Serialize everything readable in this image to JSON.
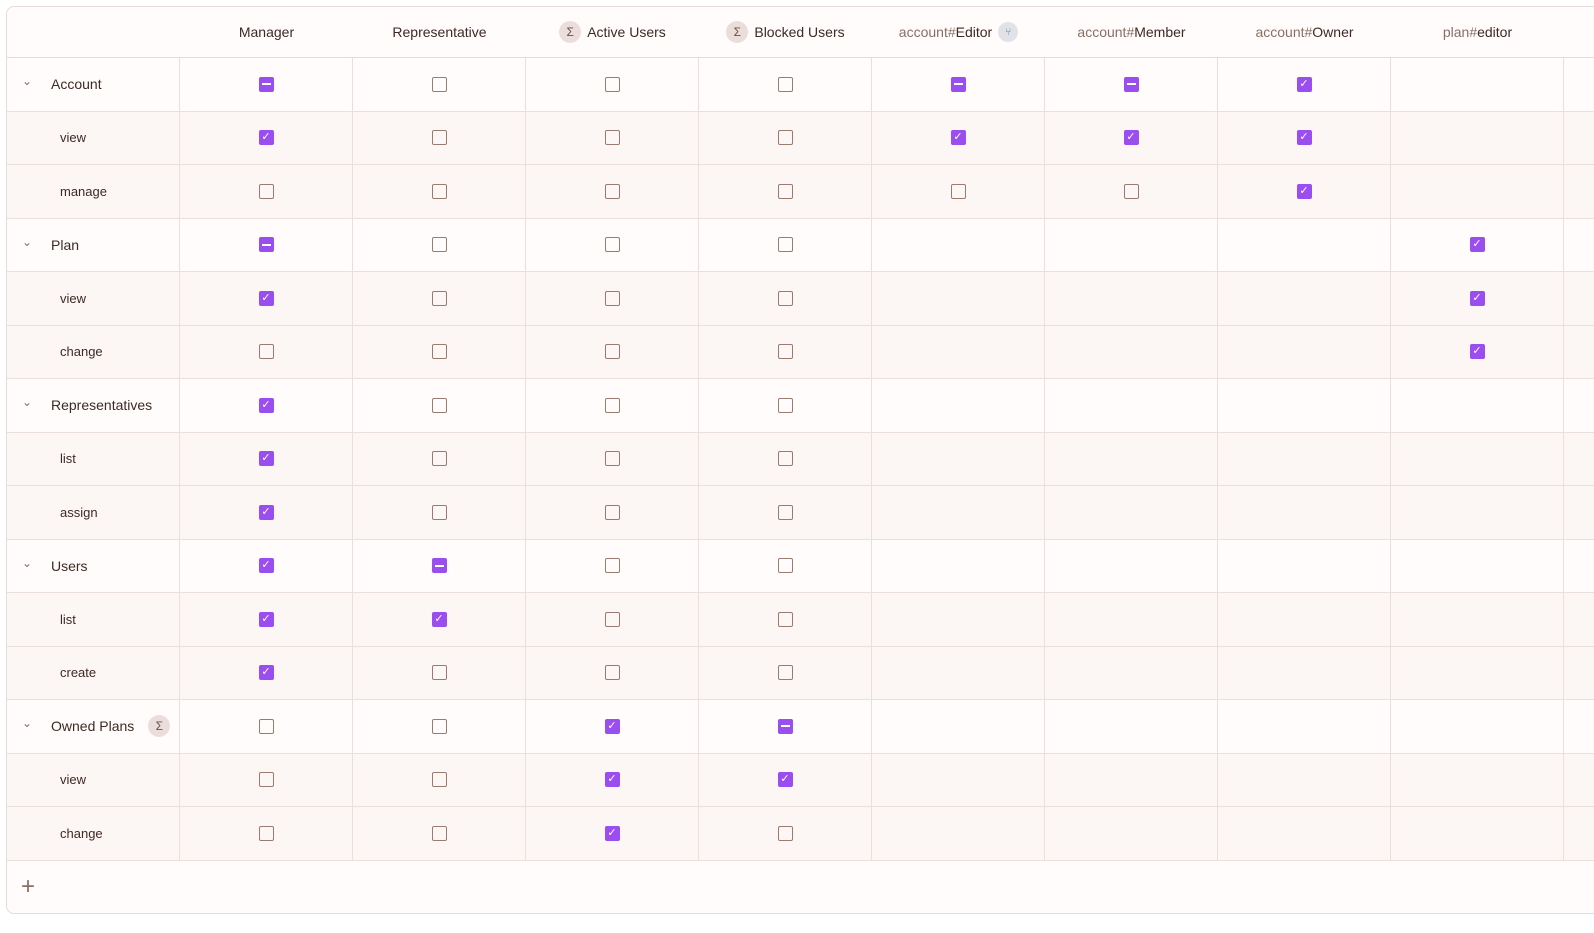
{
  "columns": [
    {
      "label": "Manager"
    },
    {
      "label": "Representative"
    },
    {
      "label": "Active Users",
      "icon": "sigma-icon"
    },
    {
      "label": "Blocked Users",
      "icon": "sigma-icon"
    },
    {
      "prefix": "account#",
      "label": "Editor",
      "icon": "relation-icon"
    },
    {
      "prefix": "account#",
      "label": "Member"
    },
    {
      "prefix": "account#",
      "label": "Owner"
    },
    {
      "prefix": "plan#",
      "label": "editor"
    }
  ],
  "accent": "#9a4ef0",
  "rows": [
    {
      "label": "Account",
      "group": true,
      "values": [
        "indeterminate",
        "unchecked",
        "unchecked",
        "unchecked",
        "indeterminate",
        "indeterminate",
        "checked",
        null
      ]
    },
    {
      "label": "view",
      "values": [
        "checked",
        "unchecked",
        "unchecked",
        "unchecked",
        "checked",
        "checked",
        "checked",
        null
      ]
    },
    {
      "label": "manage",
      "values": [
        "unchecked",
        "unchecked",
        "unchecked",
        "unchecked",
        "unchecked",
        "unchecked",
        "checked",
        null
      ]
    },
    {
      "label": "Plan",
      "group": true,
      "values": [
        "indeterminate",
        "unchecked",
        "unchecked",
        "unchecked",
        null,
        null,
        null,
        "checked"
      ]
    },
    {
      "label": "view",
      "values": [
        "checked",
        "unchecked",
        "unchecked",
        "unchecked",
        null,
        null,
        null,
        "checked"
      ]
    },
    {
      "label": "change",
      "values": [
        "unchecked",
        "unchecked",
        "unchecked",
        "unchecked",
        null,
        null,
        null,
        "checked"
      ]
    },
    {
      "label": "Representatives",
      "group": true,
      "values": [
        "checked",
        "unchecked",
        "unchecked",
        "unchecked",
        null,
        null,
        null,
        null
      ]
    },
    {
      "label": "list",
      "values": [
        "checked",
        "unchecked",
        "unchecked",
        "unchecked",
        null,
        null,
        null,
        null
      ]
    },
    {
      "label": "assign",
      "values": [
        "checked",
        "unchecked",
        "unchecked",
        "unchecked",
        null,
        null,
        null,
        null
      ]
    },
    {
      "label": "Users",
      "group": true,
      "values": [
        "checked",
        "indeterminate",
        "unchecked",
        "unchecked",
        null,
        null,
        null,
        null
      ]
    },
    {
      "label": "list",
      "values": [
        "checked",
        "checked",
        "unchecked",
        "unchecked",
        null,
        null,
        null,
        null
      ]
    },
    {
      "label": "create",
      "values": [
        "checked",
        "unchecked",
        "unchecked",
        "unchecked",
        null,
        null,
        null,
        null
      ]
    },
    {
      "label": "Owned Plans",
      "group": true,
      "icon": "sigma-icon",
      "values": [
        "unchecked",
        "unchecked",
        "checked",
        "indeterminate",
        null,
        null,
        null,
        null
      ]
    },
    {
      "label": "view",
      "values": [
        "unchecked",
        "unchecked",
        "checked",
        "checked",
        null,
        null,
        null,
        null
      ]
    },
    {
      "label": "change",
      "values": [
        "unchecked",
        "unchecked",
        "checked",
        "unchecked",
        null,
        null,
        null,
        null
      ]
    }
  ],
  "footer": {
    "add_icon": "plus-icon"
  }
}
